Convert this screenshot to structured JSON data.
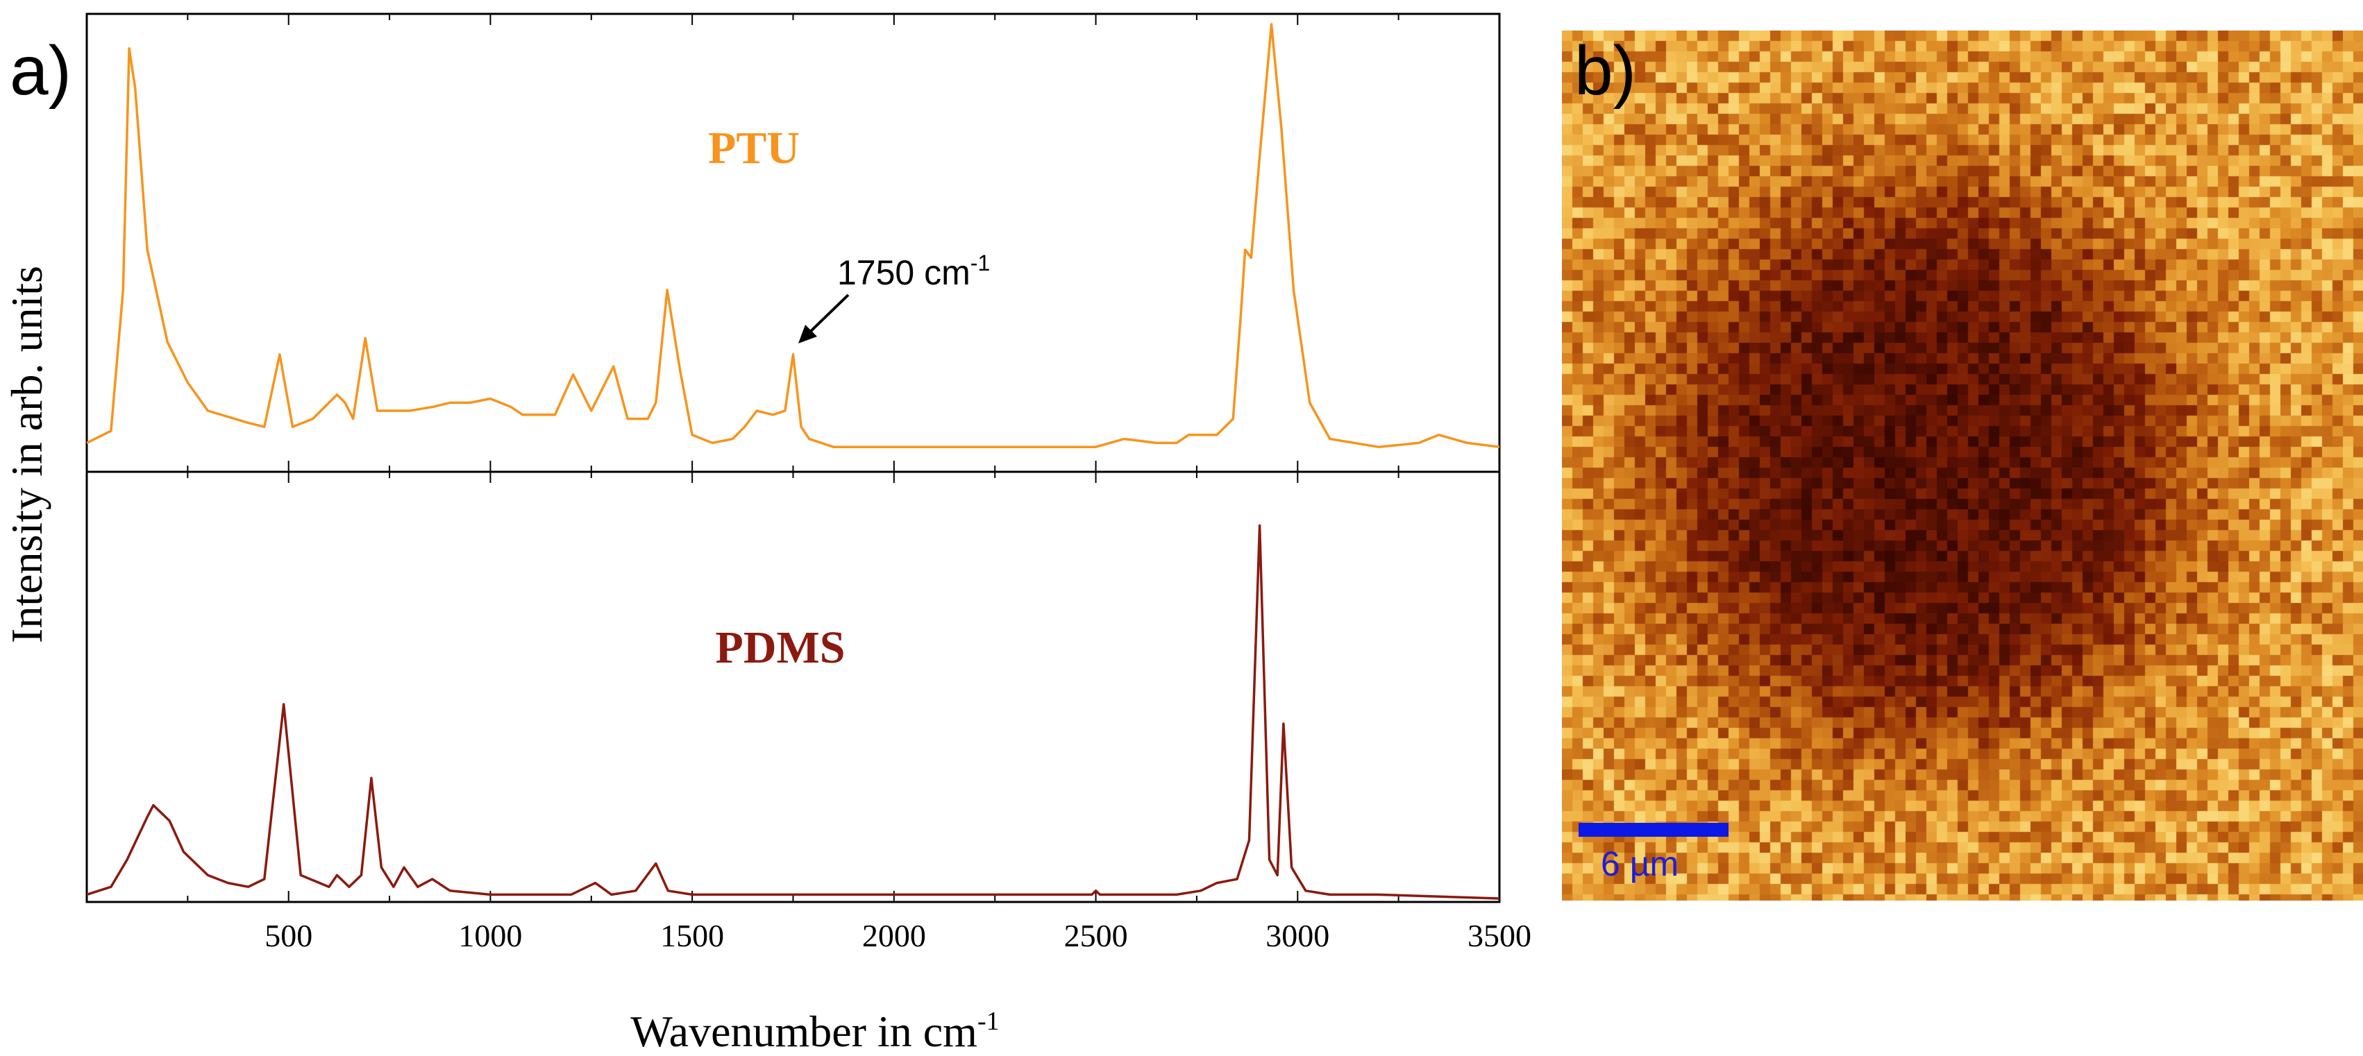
{
  "figure": {
    "panel_a_label": "a)",
    "panel_b_label": "b)"
  },
  "chart_data": [
    {
      "type": "line",
      "title": "",
      "xlabel": "Wavenumber in cm",
      "xlabel_superscript": "-1",
      "ylabel": "Intensity in arb. units",
      "xlim": [
        0,
        3500
      ],
      "xticks": [
        500,
        1000,
        1500,
        2000,
        2500,
        3000,
        3500
      ],
      "series": [
        {
          "name": "PTU",
          "color": "#f7941d",
          "x": [
            0,
            60,
            90,
            105,
            120,
            150,
            200,
            250,
            300,
            400,
            440,
            478,
            510,
            560,
            620,
            640,
            660,
            690,
            720,
            760,
            800,
            860,
            900,
            950,
            1000,
            1050,
            1080,
            1120,
            1160,
            1205,
            1250,
            1305,
            1340,
            1390,
            1410,
            1438,
            1470,
            1500,
            1550,
            1600,
            1630,
            1660,
            1700,
            1730,
            1750,
            1770,
            1790,
            1850,
            1910,
            1960,
            2200,
            2500,
            2570,
            2650,
            2700,
            2730,
            2800,
            2840,
            2860,
            2870,
            2885,
            2905,
            2935,
            2960,
            2990,
            3030,
            3080,
            3200,
            3300,
            3350,
            3420,
            3500
          ],
          "values": [
            2,
            5,
            40,
            100,
            90,
            50,
            27,
            17,
            10,
            7,
            6,
            24,
            6,
            8,
            14,
            12,
            8,
            28,
            10,
            10,
            10,
            11,
            12,
            12,
            13,
            11,
            9,
            9,
            9,
            19,
            10,
            21,
            8,
            8,
            12,
            40,
            20,
            4,
            2,
            3,
            6,
            10,
            9,
            10,
            24,
            6,
            3,
            1,
            1,
            1,
            1,
            1,
            3,
            2,
            2,
            4,
            4,
            8,
            35,
            50,
            48,
            72,
            106,
            80,
            40,
            12,
            3,
            1,
            2,
            4,
            2,
            1
          ]
        },
        {
          "name": "PDMS",
          "color": "#8b1a10",
          "x": [
            0,
            60,
            100,
            150,
            165,
            185,
            205,
            240,
            300,
            350,
            400,
            440,
            488,
            530,
            600,
            620,
            650,
            680,
            705,
            730,
            760,
            786,
            820,
            856,
            900,
            1000,
            1100,
            1200,
            1260,
            1300,
            1360,
            1410,
            1440,
            1500,
            2000,
            2490,
            2500,
            2510,
            2600,
            2700,
            2760,
            2800,
            2850,
            2880,
            2906,
            2930,
            2950,
            2965,
            2985,
            3020,
            3080,
            3200,
            3500
          ],
          "values": [
            1,
            3,
            10,
            21,
            24,
            22,
            20,
            12,
            6,
            4,
            3,
            5,
            50,
            6,
            3,
            6,
            3,
            6,
            31,
            8,
            3,
            8,
            3,
            5,
            2,
            1,
            1,
            1,
            4,
            1,
            2,
            9,
            2,
            1,
            1,
            1,
            2,
            1,
            1,
            1,
            2,
            4,
            5,
            15,
            96,
            10,
            6,
            45,
            8,
            2,
            1,
            1,
            0
          ]
        }
      ],
      "annotations": [
        {
          "text": "1750 cm",
          "superscript": "-1",
          "x": 1750,
          "series": "PTU"
        }
      ]
    },
    {
      "type": "heatmap",
      "title": "",
      "colormap": [
        "#300400",
        "#7a1c04",
        "#b2520c",
        "#dc8a24",
        "#f3bb4e",
        "#fde890"
      ],
      "center_feature": "dark circular region centered in map",
      "scale_bar": {
        "label": "6 µm",
        "color": "#0c18e6",
        "length_um": 6
      }
    }
  ]
}
